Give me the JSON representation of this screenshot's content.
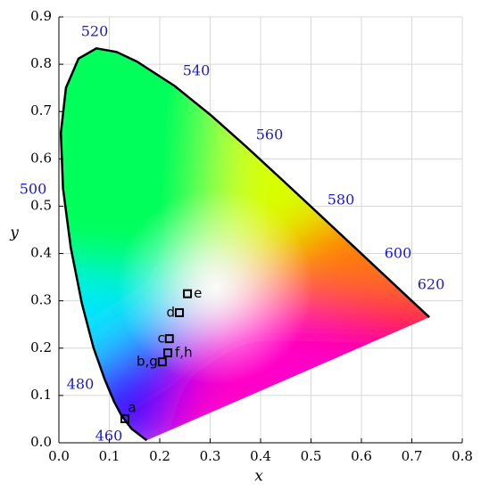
{
  "chart_data": {
    "type": "scatter",
    "x_label": "x",
    "y_label": "y",
    "xlim": [
      0,
      0.8
    ],
    "ylim": [
      0,
      0.9
    ],
    "xticks": [
      {
        "value": 0,
        "label": "0.0"
      },
      0.1,
      0.2,
      0.3,
      0.4,
      0.5,
      0.6,
      0.7,
      0.8
    ],
    "yticks": [
      {
        "value": 0,
        "label": "0.0"
      },
      0.1,
      0.2,
      0.3,
      0.4,
      0.5,
      0.6,
      0.7,
      0.8,
      0.9
    ],
    "grid": true,
    "wavelength_labels": [
      460,
      480,
      500,
      520,
      540,
      560,
      580,
      600,
      620
    ],
    "point_labels": [
      "a",
      "b,g",
      "f,h",
      "c",
      "d",
      "e"
    ],
    "x": [
      0.131,
      0.205,
      0.216,
      0.219,
      0.239,
      0.255
    ],
    "y": [
      0.051,
      0.171,
      0.19,
      0.22,
      0.275,
      0.315
    ],
    "marker_color": "#000000"
  }
}
